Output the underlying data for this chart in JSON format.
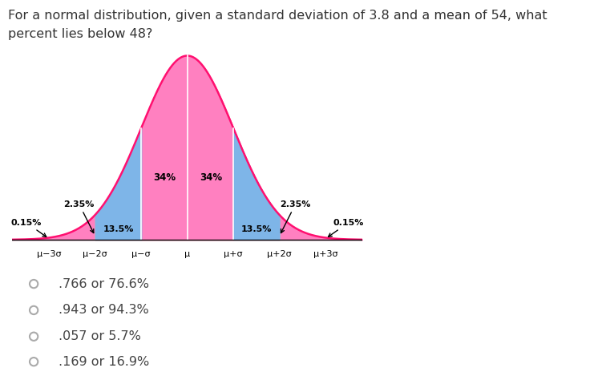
{
  "title_line1": "For a normal distribution, given a standard deviation of 3.8 and a mean of 54, what",
  "title_line2": "percent lies below 48?",
  "title_fontsize": 11.5,
  "answer_options": [
    ".766 or 76.6%",
    ".943 or 94.3%",
    ".057 or 5.7%",
    ".169 or 16.9%"
  ],
  "x_tick_labels": [
    "μ−3σ",
    "μ−2σ",
    "μ−σ",
    "μ",
    "μ+σ",
    "μ+2σ",
    "μ+3σ"
  ],
  "segment_labels": [
    "0.15%",
    "2.35%",
    "13.5%",
    "34%",
    "34%",
    "13.5%",
    "2.35%",
    "0.15%"
  ],
  "color_magenta_fill": "#FF80C0",
  "color_salmon_fill": "#FFB0A0",
  "color_blue_fill": "#7EB5E8",
  "color_outline": "#FF2080",
  "color_white_line": "#FFFFFF",
  "background_color": "#ffffff",
  "text_color": "#333333"
}
